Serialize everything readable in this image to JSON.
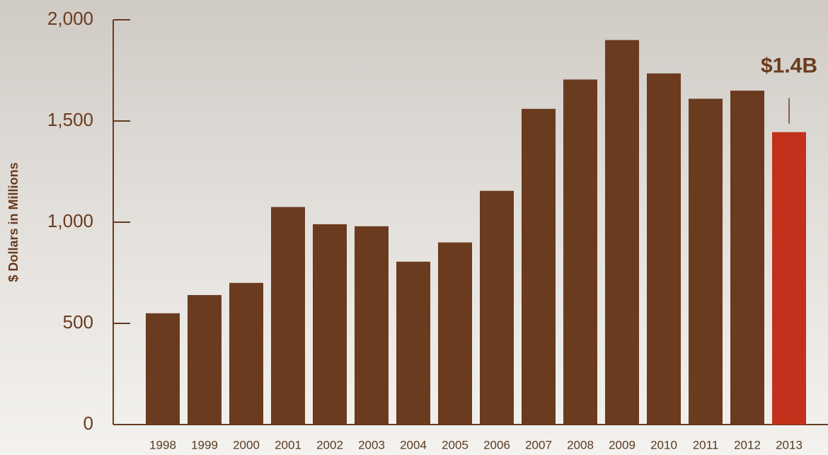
{
  "chart_data": {
    "type": "bar",
    "y_label": "$ Dollars in Millions",
    "categories": [
      "1998",
      "1999",
      "2000",
      "2001",
      "2002",
      "2003",
      "2004",
      "2005",
      "2006",
      "2007",
      "2008",
      "2009",
      "2010",
      "2011",
      "2012",
      "2013"
    ],
    "values": [
      550,
      640,
      700,
      1075,
      990,
      980,
      805,
      900,
      1155,
      1560,
      1705,
      1900,
      1735,
      1610,
      1650,
      1445
    ],
    "value_labels": [
      null,
      null,
      null,
      null,
      null,
      null,
      null,
      null,
      null,
      null,
      null,
      null,
      null,
      null,
      null,
      "$1.4B"
    ],
    "colors": [
      "#6a3b1f",
      "#6a3b1f",
      "#6a3b1f",
      "#6a3b1f",
      "#6a3b1f",
      "#6a3b1f",
      "#6a3b1f",
      "#6a3b1f",
      "#6a3b1f",
      "#6a3b1f",
      "#6a3b1f",
      "#6a3b1f",
      "#6a3b1f",
      "#6a3b1f",
      "#6a3b1f",
      "#c2311b"
    ],
    "ylim": [
      0,
      2000
    ],
    "yticks": [
      0,
      500,
      {
        "value": 1000,
        "label": "1,000"
      },
      {
        "value": 1500,
        "label": "1,500"
      },
      {
        "value": 2000,
        "label": "2,000"
      }
    ],
    "grid": false
  }
}
